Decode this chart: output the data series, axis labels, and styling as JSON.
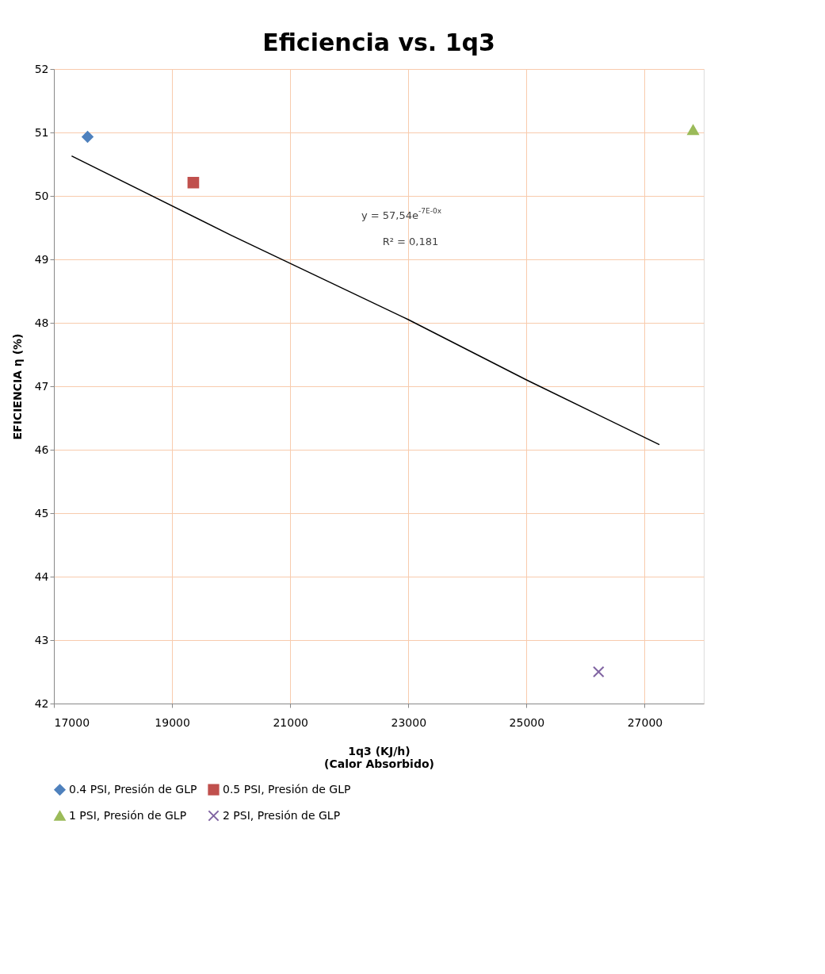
{
  "chart_data": {
    "type": "scatter",
    "title": "Eficiencia vs. 1q3",
    "xlabel": "1q3  (KJ/h)\n(Calor Absorbido)",
    "ylabel": "EFICIENCIA η (%)",
    "xlim": [
      17000,
      28000
    ],
    "xticks": [
      17000,
      19000,
      21000,
      23000,
      25000,
      27000
    ],
    "ylim": [
      42,
      52
    ],
    "yticks": [
      42,
      43,
      44,
      45,
      46,
      47,
      48,
      49,
      50,
      51,
      52
    ],
    "grid": true,
    "legend": "bottom",
    "series": [
      {
        "name": "0.4 PSI, Presión de GLP",
        "color": "#4f81bd",
        "marker": "diamond",
        "x": [
          17570
        ],
        "values": [
          50.93
        ]
      },
      {
        "name": "0.5 PSI, Presión de GLP",
        "color": "#c0504d",
        "marker": "square",
        "x": [
          19360
        ],
        "values": [
          50.21
        ]
      },
      {
        "name": "1 PSI, Presión de GLP",
        "color": "#9bbb59",
        "marker": "triangle",
        "x": [
          27820
        ],
        "values": [
          51.04
        ]
      },
      {
        "name": "2 PSI, Presión de GLP",
        "color": "#8064a2",
        "marker": "cross",
        "x": [
          26220
        ],
        "values": [
          42.5
        ]
      },
      {
        "type": "line",
        "color": "#000000",
        "marker": "none",
        "x": [
          17300,
          20000,
          23000,
          25000,
          27250
        ],
        "values": [
          50.63,
          49.38,
          48.05,
          47.1,
          46.08
        ]
      }
    ],
    "annotations": [
      "y = 57,54e$^{-7E-0x}$",
      "R² = 0,181"
    ]
  }
}
